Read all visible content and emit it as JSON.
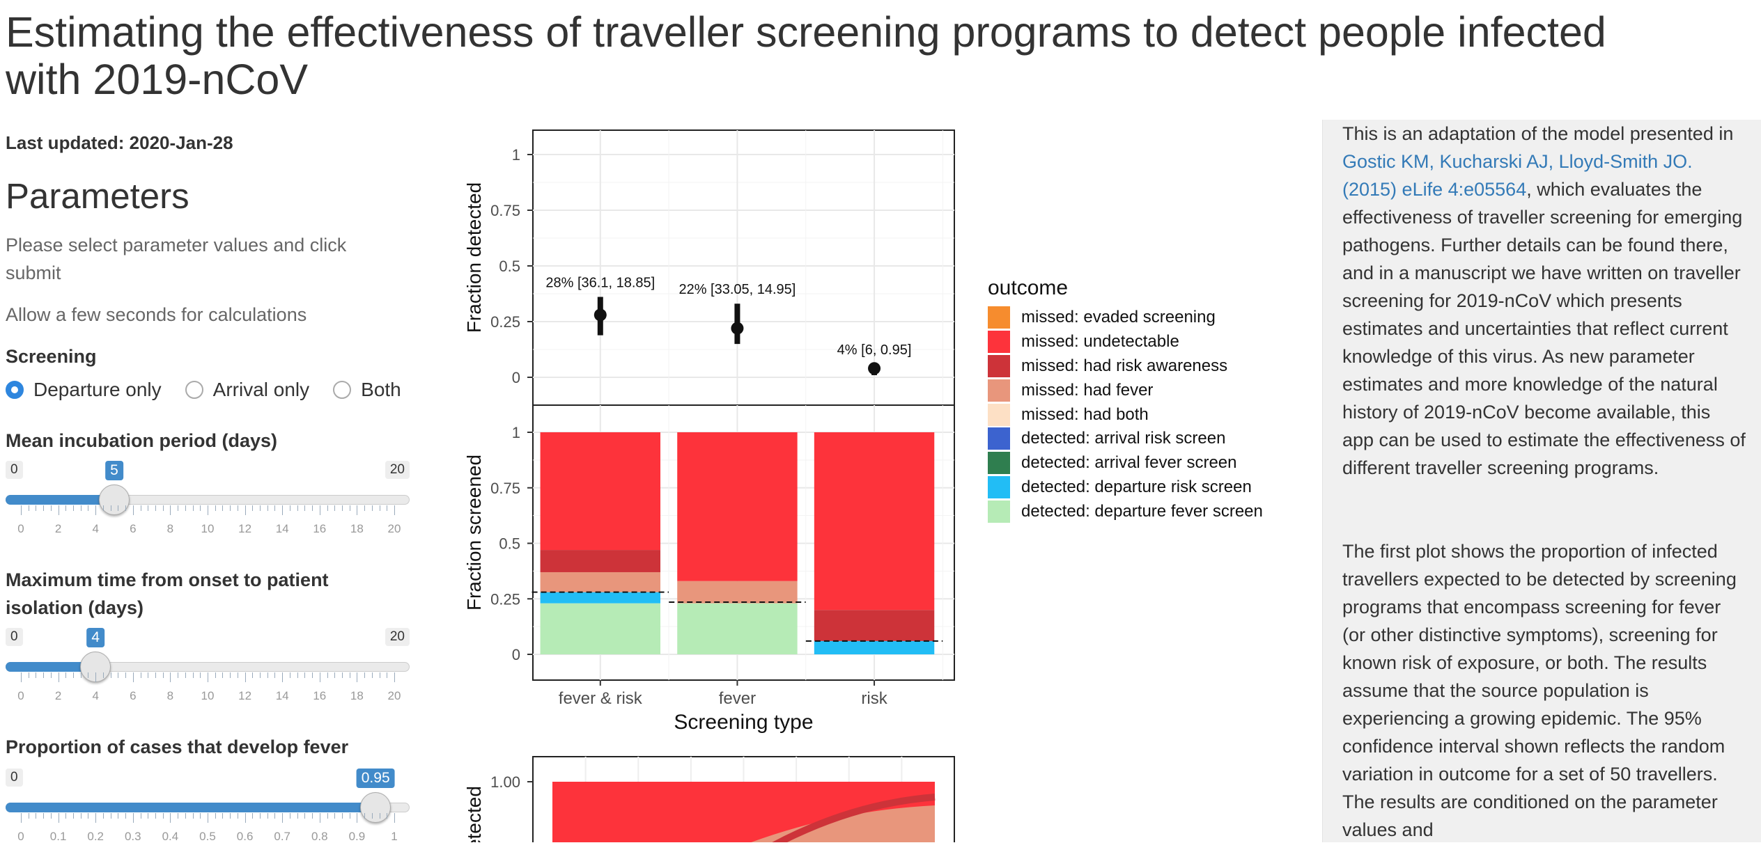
{
  "title": "Estimating the effectiveness of traveller screening programs to detect people infected with 2019-nCoV",
  "last_updated": "Last updated: 2020-Jan-28",
  "parameters": {
    "heading": "Parameters",
    "help1": "Please select parameter values and click submit",
    "help2": "Allow a few seconds for calculations",
    "screening_label": "Screening",
    "screening_options": [
      "Departure only",
      "Arrival only",
      "Both"
    ],
    "screening_selected": "Departure only",
    "incubation": {
      "label": "Mean incubation period (days)",
      "min": "0",
      "max": "20",
      "value": "5",
      "ticks": [
        "0",
        "2",
        "4",
        "6",
        "8",
        "10",
        "12",
        "14",
        "16",
        "18",
        "20"
      ]
    },
    "isolation": {
      "label": "Maximum time from onset to patient isolation (days)",
      "min": "0",
      "max": "20",
      "value": "4",
      "ticks": [
        "0",
        "2",
        "4",
        "6",
        "8",
        "10",
        "12",
        "14",
        "16",
        "18",
        "20"
      ]
    },
    "fever": {
      "label": "Proportion of cases that develop fever",
      "min": "0",
      "max": "0.95",
      "value": "0.95",
      "ticks": [
        "0",
        "0.1",
        "0.2",
        "0.3",
        "0.4",
        "0.5",
        "0.6",
        "0.7",
        "0.8",
        "0.9",
        "1"
      ]
    }
  },
  "info": {
    "p1_before": "This is an adaptation of the model presented in ",
    "p1_link": "Gostic KM, Kucharski AJ, Lloyd-Smith JO. (2015) eLife 4:e05564",
    "p1_after": ", which evaluates the effectiveness of traveller screening for emerging pathogens. Further details can be found there, and in a manuscript we have written on traveller screening for 2019-nCoV which presents estimates and uncertainties that reflect current knowledge of this virus. As new parameter estimates and more knowledge of the natural history of 2019-nCoV become available, this app can be used to estimate the effectiveness of different traveller screening programs.",
    "p2": "The first plot shows the proportion of infected travellers expected to be detected by screening programs that encompass screening for fever (or other distinctive symptoms), screening for known risk of exposure, or both. The results assume that the source population is experiencing a growing epidemic. The 95% confidence interval shown reflects the random variation in outcome for a set of 50 travellers. The results are conditioned on the parameter values and"
  },
  "colors": {
    "evaded": "#f68c2e",
    "undetectable": "#fd333b",
    "risk_aware": "#cd3339",
    "had_fever": "#e8967c",
    "had_both": "#fde0c5",
    "arr_risk": "#3c63cf",
    "arr_fever": "#2f7e4f",
    "dep_risk": "#22bdf5",
    "dep_fever": "#b6ebb6",
    "accent": "#428bca"
  },
  "chart_data": [
    {
      "type": "scatter",
      "ylabel": "Fraction detected",
      "ylim": [
        0,
        1
      ],
      "yticks": [
        "0",
        "0.25",
        "0.5",
        "0.75",
        "1"
      ],
      "categories": [
        "fever & risk",
        "fever",
        "risk"
      ],
      "points": [
        {
          "category": "fever & risk",
          "value": 0.28,
          "ci": [
            0.1885,
            0.361
          ],
          "label": "28% [36.1, 18.85]"
        },
        {
          "category": "fever",
          "value": 0.22,
          "ci": [
            0.1495,
            0.3305
          ],
          "label": "22% [33.05, 14.95]"
        },
        {
          "category": "risk",
          "value": 0.04,
          "ci": [
            0.0095,
            0.06
          ],
          "label": "4% [6, 0.95]"
        }
      ]
    },
    {
      "type": "bar",
      "stacked": true,
      "xlabel": "Screening type",
      "ylabel": "Fraction screened",
      "ylim": [
        0,
        1
      ],
      "yticks": [
        "0",
        "0.25",
        "0.5",
        "0.75",
        "1"
      ],
      "categories": [
        "fever & risk",
        "fever",
        "risk"
      ],
      "legend_title": "outcome",
      "series": [
        {
          "name": "detected: departure fever screen",
          "key": "dep_fever",
          "values": [
            0.23,
            0.23,
            0.0
          ]
        },
        {
          "name": "detected: departure risk screen",
          "key": "dep_risk",
          "values": [
            0.05,
            0.0,
            0.06
          ]
        },
        {
          "name": "detected: arrival fever screen",
          "key": "arr_fever",
          "values": [
            0.0,
            0.0,
            0.0
          ]
        },
        {
          "name": "detected: arrival risk screen",
          "key": "arr_risk",
          "values": [
            0.0,
            0.0,
            0.0
          ]
        },
        {
          "name": "missed: had both",
          "key": "had_both",
          "values": [
            0.0,
            0.0,
            0.0
          ]
        },
        {
          "name": "missed: had fever",
          "key": "had_fever",
          "values": [
            0.09,
            0.1,
            0.0
          ]
        },
        {
          "name": "missed: had risk awareness",
          "key": "risk_aware",
          "values": [
            0.1,
            0.0,
            0.14
          ]
        },
        {
          "name": "missed: undetectable",
          "key": "undetectable",
          "values": [
            0.53,
            0.67,
            0.8
          ]
        },
        {
          "name": "missed: evaded screening",
          "key": "evaded",
          "values": [
            0.0,
            0.0,
            0.0
          ]
        }
      ],
      "legend_order": [
        "missed: evaded screening",
        "missed: undetectable",
        "missed: had risk awareness",
        "missed: had fever",
        "missed: had both",
        "detected: arrival risk screen",
        "detected: arrival fever screen",
        "detected: departure risk screen",
        "detected: departure fever screen"
      ],
      "dashed_lines": [
        0.28,
        0.235,
        0.06
      ]
    },
    {
      "type": "area",
      "ylabel": "etected",
      "yticks": [
        "1.00"
      ],
      "ylim": [
        0,
        1
      ]
    }
  ]
}
